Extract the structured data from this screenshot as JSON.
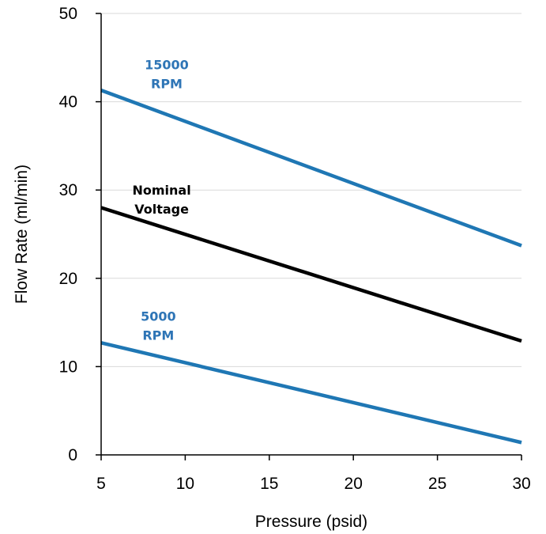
{
  "chart_data": {
    "type": "line",
    "title": "",
    "xlabel": "Pressure (psid)",
    "ylabel": "Flow Rate (ml/min)",
    "xlim": [
      5,
      30
    ],
    "ylim": [
      0,
      50
    ],
    "xticks": [
      5,
      10,
      15,
      20,
      25,
      30
    ],
    "yticks": [
      0,
      10,
      20,
      30,
      40,
      50
    ],
    "grid": "horizontal",
    "legend": "none",
    "series": [
      {
        "label_lines": [
          "15000",
          "RPM"
        ],
        "color": "#1f77b4",
        "label_color": "#2e75b6",
        "x": [
          5,
          30
        ],
        "y": [
          41.3,
          23.7
        ],
        "label_at": [
          8.9,
          43.7
        ]
      },
      {
        "label_lines": [
          "Nominal",
          "Voltage"
        ],
        "color": "#000000",
        "label_color": "#000000",
        "x": [
          5,
          30
        ],
        "y": [
          28.0,
          12.9
        ],
        "label_at": [
          8.6,
          29.5
        ]
      },
      {
        "label_lines": [
          "5000",
          "RPM"
        ],
        "color": "#1f77b4",
        "label_color": "#2e75b6",
        "x": [
          5,
          30
        ],
        "y": [
          12.7,
          1.4
        ],
        "label_at": [
          8.4,
          15.2
        ]
      }
    ]
  }
}
